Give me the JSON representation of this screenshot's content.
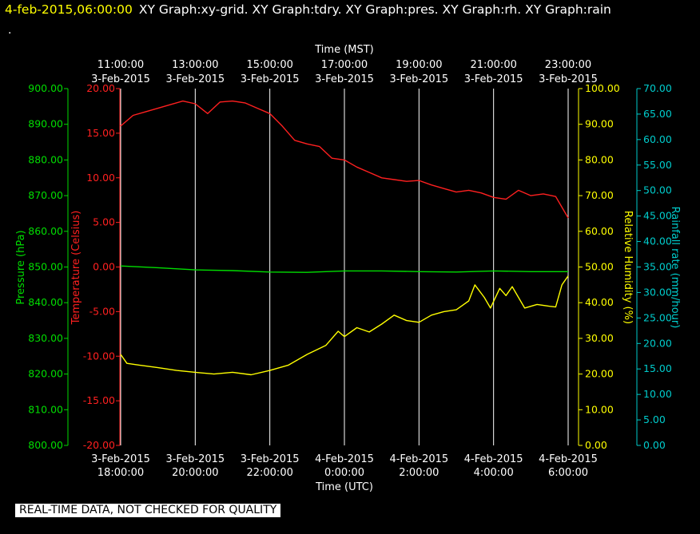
{
  "header": {
    "date": "4-feb-2015,06:00:00",
    "titles": "XY Graph:xy-grid.  XY Graph:tdry.  XY Graph:pres.  XY Graph:rh.  XY Graph:rain",
    "dot": "."
  },
  "disclaimer": "REAL-TIME DATA, NOT CHECKED FOR QUALITY",
  "colors": {
    "background": "#000000",
    "grid": "#ffffff",
    "temperature": "#ff2020",
    "pressure": "#00dd00",
    "humidity": "#ffff00",
    "rain": "#00cccc"
  },
  "chart_data": {
    "type": "line",
    "grid": true,
    "x_top": {
      "label": "Time (MST)",
      "ticks": [
        {
          "time": "11:00:00",
          "date": "3-Feb-2015"
        },
        {
          "time": "13:00:00",
          "date": "3-Feb-2015"
        },
        {
          "time": "15:00:00",
          "date": "3-Feb-2015"
        },
        {
          "time": "17:00:00",
          "date": "3-Feb-2015"
        },
        {
          "time": "19:00:00",
          "date": "3-Feb-2015"
        },
        {
          "time": "21:00:00",
          "date": "3-Feb-2015"
        },
        {
          "time": "23:00:00",
          "date": "3-Feb-2015"
        }
      ]
    },
    "x_bottom": {
      "label": "Time (UTC)",
      "xlim": [
        "2015-02-03 18:00",
        "2015-02-04 06:00"
      ],
      "ticks": [
        {
          "date": "3-Feb-2015",
          "time": "18:00:00"
        },
        {
          "date": "3-Feb-2015",
          "time": "20:00:00"
        },
        {
          "date": "3-Feb-2015",
          "time": "22:00:00"
        },
        {
          "date": "4-Feb-2015",
          "time": "0:00:00"
        },
        {
          "date": "4-Feb-2015",
          "time": "2:00:00"
        },
        {
          "date": "4-Feb-2015",
          "time": "4:00:00"
        },
        {
          "date": "4-Feb-2015",
          "time": "6:00:00"
        }
      ]
    },
    "axes": {
      "pressure": {
        "label": "Pressure (hPa)",
        "ylim": [
          800,
          900
        ],
        "ticks": [
          "800.00",
          "810.00",
          "820.00",
          "830.00",
          "840.00",
          "850.00",
          "860.00",
          "870.00",
          "880.00",
          "890.00",
          "900.00"
        ]
      },
      "temperature": {
        "label": "Temperature (Celsius)",
        "ylim": [
          -20,
          20
        ],
        "ticks": [
          "-20.00",
          "-15.00",
          "-10.00",
          "-5.00",
          "0.00",
          "5.00",
          "10.00",
          "15.00",
          "20.00"
        ]
      },
      "humidity": {
        "label": "Relative Humidity (%)",
        "ylim": [
          0,
          100
        ],
        "ticks": [
          "0.00",
          "10.00",
          "20.00",
          "30.00",
          "40.00",
          "50.00",
          "60.00",
          "70.00",
          "80.00",
          "90.00",
          "100.00"
        ]
      },
      "rain": {
        "label": "Rainfall rate (mm/hour)",
        "ylim": [
          0,
          70
        ],
        "ticks": [
          "0.00",
          "5.00",
          "10.00",
          "15.00",
          "20.00",
          "25.00",
          "30.00",
          "35.00",
          "40.00",
          "45.00",
          "50.00",
          "55.00",
          "60.00",
          "65.00",
          "70.00"
        ]
      }
    },
    "series": [
      {
        "key": "temperature",
        "axis": "temperature",
        "x": [
          "2015-02-03 18:00",
          "2015-02-03 18:20",
          "2015-02-03 18:40",
          "2015-02-03 19:00",
          "2015-02-03 19:20",
          "2015-02-03 19:40",
          "2015-02-03 20:00",
          "2015-02-03 20:20",
          "2015-02-03 20:40",
          "2015-02-03 21:00",
          "2015-02-03 21:20",
          "2015-02-03 21:40",
          "2015-02-03 22:00",
          "2015-02-03 22:20",
          "2015-02-03 22:40",
          "2015-02-03 23:00",
          "2015-02-03 23:20",
          "2015-02-03 23:40",
          "2015-02-04 00:00",
          "2015-02-04 00:20",
          "2015-02-04 00:40",
          "2015-02-04 01:00",
          "2015-02-04 01:20",
          "2015-02-04 01:40",
          "2015-02-04 02:00",
          "2015-02-04 02:20",
          "2015-02-04 02:40",
          "2015-02-04 03:00",
          "2015-02-04 03:20",
          "2015-02-04 03:40",
          "2015-02-04 04:00",
          "2015-02-04 04:20",
          "2015-02-04 04:40",
          "2015-02-04 05:00",
          "2015-02-04 05:20",
          "2015-02-04 05:40",
          "2015-02-04 06:00"
        ],
        "y": [
          15.8,
          17.0,
          17.4,
          17.8,
          18.2,
          18.6,
          18.3,
          17.2,
          18.5,
          18.6,
          18.4,
          17.8,
          17.2,
          15.8,
          14.2,
          13.8,
          13.5,
          12.2,
          12.0,
          11.2,
          10.6,
          10.0,
          9.8,
          9.6,
          9.7,
          9.2,
          8.8,
          8.4,
          8.6,
          8.3,
          7.8,
          7.6,
          8.6,
          8.0,
          8.2,
          7.9,
          5.5
        ]
      },
      {
        "key": "pressure",
        "axis": "pressure",
        "x": [
          "2015-02-03 18:00",
          "2015-02-03 19:00",
          "2015-02-03 20:00",
          "2015-02-03 21:00",
          "2015-02-03 22:00",
          "2015-02-03 23:00",
          "2015-02-04 00:00",
          "2015-02-04 01:00",
          "2015-02-04 02:00",
          "2015-02-04 03:00",
          "2015-02-04 04:00",
          "2015-02-04 05:00",
          "2015-02-04 06:00"
        ],
        "y": [
          850.3,
          849.8,
          849.2,
          849.0,
          848.6,
          848.5,
          848.9,
          848.9,
          848.7,
          848.6,
          848.9,
          848.7,
          848.7
        ]
      },
      {
        "key": "humidity",
        "axis": "humidity",
        "x": [
          "2015-02-03 18:00",
          "2015-02-03 18:10",
          "2015-02-03 18:30",
          "2015-02-03 19:00",
          "2015-02-03 19:30",
          "2015-02-03 20:00",
          "2015-02-03 20:30",
          "2015-02-03 21:00",
          "2015-02-03 21:30",
          "2015-02-03 22:00",
          "2015-02-03 22:30",
          "2015-02-03 23:00",
          "2015-02-03 23:30",
          "2015-02-03 23:40",
          "2015-02-03 23:50",
          "2015-02-04 00:00",
          "2015-02-04 00:20",
          "2015-02-04 00:40",
          "2015-02-04 01:00",
          "2015-02-04 01:20",
          "2015-02-04 01:40",
          "2015-02-04 02:00",
          "2015-02-04 02:20",
          "2015-02-04 02:40",
          "2015-02-04 03:00",
          "2015-02-04 03:20",
          "2015-02-04 03:30",
          "2015-02-04 03:45",
          "2015-02-04 03:55",
          "2015-02-04 04:10",
          "2015-02-04 04:20",
          "2015-02-04 04:30",
          "2015-02-04 04:50",
          "2015-02-04 05:10",
          "2015-02-04 05:30",
          "2015-02-04 05:40",
          "2015-02-04 05:50",
          "2015-02-04 06:00"
        ],
        "y": [
          25.5,
          23.0,
          22.5,
          21.8,
          21.0,
          20.5,
          20.0,
          20.5,
          19.8,
          21.0,
          22.5,
          25.5,
          28.0,
          30.0,
          32.0,
          30.5,
          33.0,
          31.8,
          34.0,
          36.5,
          35.0,
          34.5,
          36.5,
          37.5,
          38.0,
          40.5,
          45.0,
          41.5,
          38.5,
          44.0,
          42.0,
          44.5,
          38.5,
          39.5,
          39.0,
          38.8,
          45.0,
          47.5
        ]
      },
      {
        "key": "rain",
        "axis": "rain",
        "x": [],
        "y": []
      }
    ]
  }
}
